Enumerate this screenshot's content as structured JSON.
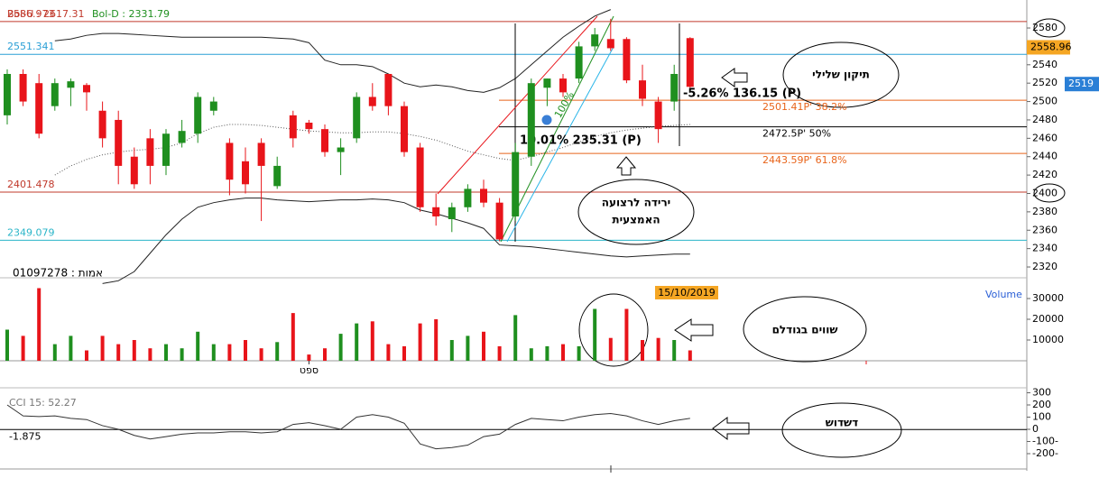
{
  "chart_data": {
    "type": "candlestick",
    "categories": [
      null,
      null,
      null,
      null,
      null,
      null,
      null,
      null,
      null,
      null,
      null,
      null,
      null,
      null,
      null,
      null,
      null,
      null,
      null,
      "ספט",
      null,
      null,
      null,
      null,
      null,
      null,
      null,
      null,
      null,
      null,
      null,
      null,
      null,
      null,
      null,
      null,
      null,
      null,
      null,
      null,
      null,
      null,
      null,
      null
    ],
    "open": [
      2485,
      2530,
      2520,
      2495,
      2515,
      2518,
      2490,
      2480,
      2440,
      2460,
      2430,
      2455,
      2465,
      2490,
      2455,
      2435,
      2455,
      2408,
      2485,
      2477,
      2470,
      2445,
      2460,
      2505,
      2530,
      2495,
      2450,
      2385,
      2372,
      2385,
      2405,
      2390,
      2375,
      2440,
      2515,
      2525,
      2525,
      2560,
      2568,
      2568,
      2523,
      2500,
      2500,
      2569
    ],
    "high": [
      2535,
      2535,
      2530,
      2525,
      2525,
      2520,
      2500,
      2490,
      2450,
      2470,
      2470,
      2480,
      2510,
      2505,
      2460,
      2450,
      2460,
      2440,
      2490,
      2480,
      2475,
      2460,
      2510,
      2520,
      2530,
      2500,
      2455,
      2400,
      2390,
      2410,
      2415,
      2395,
      2455,
      2525,
      2525,
      2530,
      2565,
      2580,
      2590,
      2570,
      2540,
      2505,
      2540,
      2570
    ],
    "low": [
      2475,
      2495,
      2460,
      2490,
      2495,
      2490,
      2450,
      2410,
      2405,
      2410,
      2420,
      2450,
      2455,
      2485,
      2398,
      2400,
      2370,
      2405,
      2450,
      2465,
      2440,
      2420,
      2455,
      2490,
      2485,
      2440,
      2380,
      2365,
      2358,
      2380,
      2385,
      2348,
      2370,
      2430,
      2495,
      2505,
      2520,
      2555,
      2555,
      2520,
      2495,
      2455,
      2490,
      2515
    ],
    "close": [
      2530,
      2500,
      2465,
      2520,
      2522,
      2510,
      2460,
      2430,
      2410,
      2430,
      2465,
      2468,
      2505,
      2500,
      2415,
      2410,
      2430,
      2430,
      2460,
      2470,
      2445,
      2450,
      2505,
      2495,
      2495,
      2445,
      2385,
      2375,
      2385,
      2405,
      2390,
      2350,
      2445,
      2520,
      2525,
      2510,
      2560,
      2573,
      2558,
      2523,
      2503,
      2470,
      2530,
      2516
    ],
    "up_color": "#1f8f1f",
    "down_color": "#e8141a",
    "ylim": [
      2311.2,
      2602.6
    ],
    "yticks": [
      2320,
      2340,
      2360,
      2380,
      2400,
      2420,
      2440,
      2460,
      2480,
      2500,
      2520,
      2540,
      2560,
      2580
    ],
    "bollinger": {
      "upper_label": "Bol-U : 2617.31",
      "lower_label": "Bol-D : 2331.79",
      "upper": [
        null,
        null,
        null,
        2566,
        2568,
        2572,
        2574,
        2574,
        2573,
        2572,
        2571,
        2570,
        2570,
        2570,
        2570,
        2570,
        2570,
        2569,
        2568,
        2564,
        2545,
        2540,
        2540,
        2538,
        2530,
        2520,
        2516,
        2518,
        2516,
        2512,
        2510,
        2515,
        2525,
        2540,
        2555,
        2570,
        2582,
        2593,
        2600,
        null,
        null,
        null,
        null,
        null
      ],
      "middle": [
        null,
        null,
        null,
        2420,
        2430,
        2437,
        2442,
        2445,
        2447,
        2448,
        2450,
        2455,
        2465,
        2472,
        2475,
        2475,
        2474,
        2472,
        2470,
        2468,
        2467,
        2466,
        2466,
        2467,
        2467,
        2465,
        2462,
        2458,
        2452,
        2446,
        2442,
        2438,
        2436,
        2440,
        2445,
        2450,
        2456,
        2462,
        2466,
        2469,
        2471,
        2473,
        2474,
        2475
      ],
      "lower": [
        null,
        null,
        null,
        null,
        null,
        null,
        2302,
        2305,
        2315,
        2335,
        2355,
        2372,
        2385,
        2390,
        2393,
        2395,
        2395,
        2393,
        2392,
        2391,
        2392,
        2393,
        2393,
        2394,
        2393,
        2390,
        2382,
        2378,
        2373,
        2368,
        2362,
        2344,
        2343,
        2342,
        2340,
        2338,
        2336,
        2334,
        2332,
        2331,
        2332,
        2333,
        2334,
        2334
      ]
    },
    "levels": [
      {
        "value": 2586.973,
        "color": "#c0392b"
      },
      {
        "value": 2551.341,
        "color": "#2a9fd6"
      },
      {
        "value": 2401.478,
        "color": "#c0392b"
      },
      {
        "value": 2349.079,
        "color": "#2ab5c8"
      }
    ],
    "fib": [
      {
        "value": 2501.41,
        "label": "2501.41P'  38.2%",
        "color": "#e8641a"
      },
      {
        "value": 2472.5,
        "label": "2472.5P'  50%",
        "color": "#000000"
      },
      {
        "value": 2443.59,
        "label": "2443.59P'  61.8%",
        "color": "#e8641a"
      }
    ],
    "price_tags": [
      {
        "value": 2558.96,
        "color": "#f5a623"
      },
      {
        "value": 2519,
        "color": "#2a7fd6"
      }
    ],
    "annotations": {
      "rise": "10.01% 235.31 (P)",
      "fall": "-5.26% 136.15 (P)",
      "trend_pct": "100%",
      "account": "01097278 : אמות",
      "date": "15/10/2019"
    },
    "callouts": {
      "correction": "תיקון שלילי",
      "drop_line1": "ירידה לרצועה",
      "drop_line2": "האמצעית",
      "equal": "שווים בגודלם",
      "sideways": "דשדוש"
    },
    "volume": {
      "name": "Volume",
      "values": [
        15000,
        12000,
        35000,
        8000,
        12000,
        5000,
        12000,
        8000,
        10000,
        6000,
        8000,
        6000,
        14000,
        8000,
        8000,
        10000,
        6000,
        9000,
        23000,
        3000,
        6000,
        13000,
        18000,
        19000,
        8000,
        7000,
        18000,
        20000,
        10000,
        12000,
        14000,
        7000,
        22000,
        6000,
        7000,
        8000,
        7000,
        25000,
        11000,
        25000,
        10000,
        11000,
        10000,
        5000
      ],
      "ylim": [
        0,
        38260
      ],
      "yticks": [
        10000,
        20000,
        30000
      ]
    },
    "cci": {
      "name": "CCI 15: 52.27",
      "level": -1.875,
      "color": "#333333",
      "values": [
        200,
        110,
        105,
        110,
        90,
        80,
        30,
        0,
        -50,
        -80,
        -60,
        -40,
        -30,
        -30,
        -20,
        -20,
        -30,
        -20,
        40,
        55,
        30,
        0,
        100,
        120,
        100,
        50,
        -120,
        -160,
        -150,
        -130,
        -60,
        -40,
        40,
        90,
        80,
        70,
        100,
        120,
        130,
        110,
        70,
        40,
        70,
        90
      ],
      "ylim": [
        -326,
        326
      ],
      "yticks": [
        {
          "value": -200,
          "label": "-200-"
        },
        {
          "value": -100,
          "label": "-100-"
        },
        0,
        100,
        200,
        300
      ]
    }
  }
}
